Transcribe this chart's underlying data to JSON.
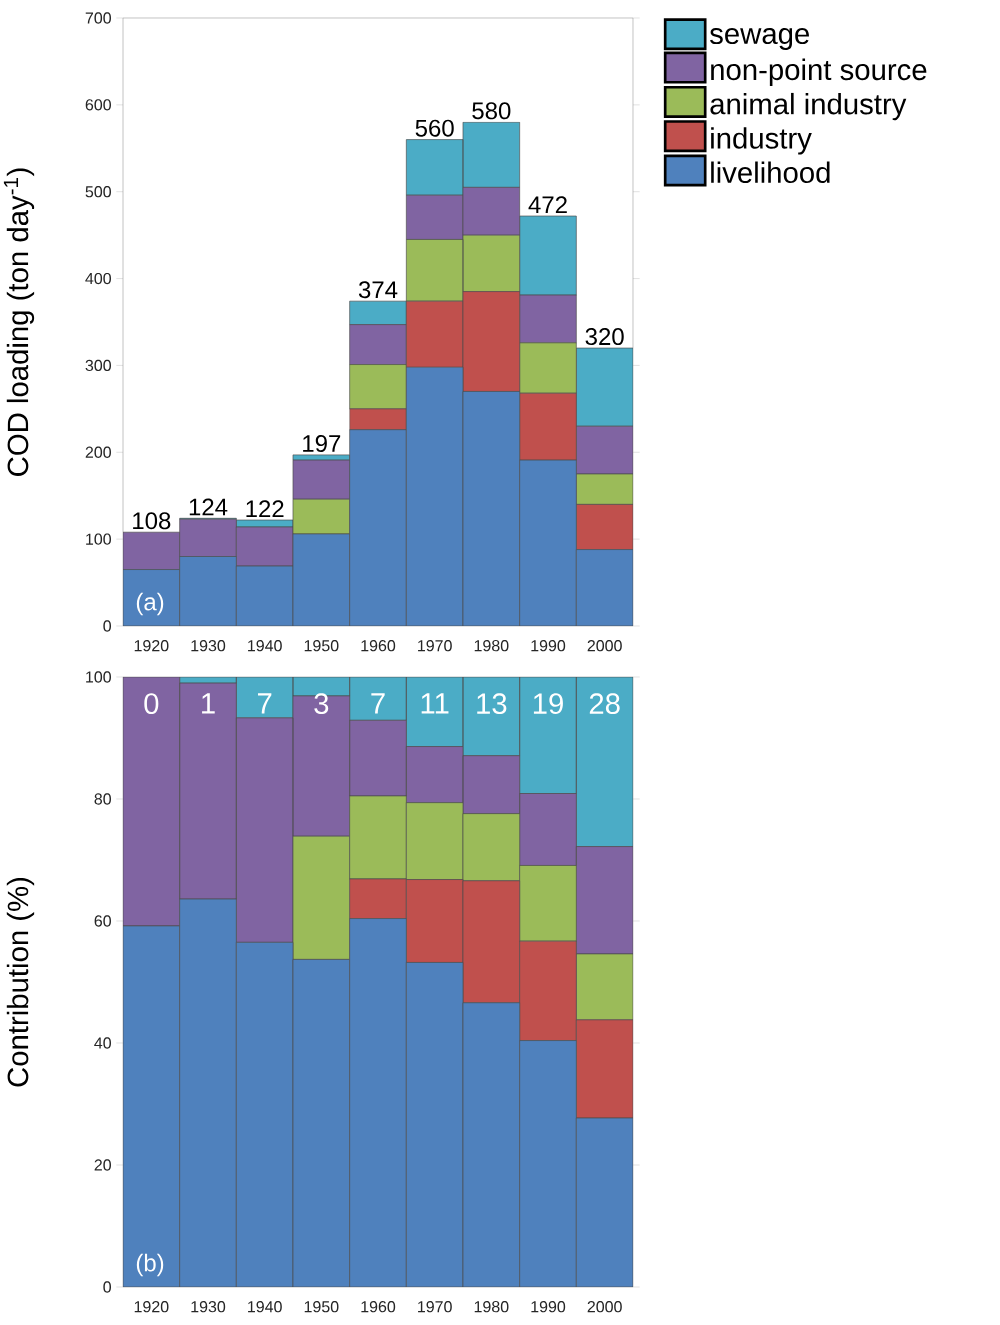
{
  "chart_data": [
    {
      "type": "bar",
      "stacked": true,
      "ylabel": "COD loading (ton day$^{-1}$)",
      "categories": [
        "1920",
        "1930",
        "1940",
        "1950",
        "1960",
        "1970",
        "1980",
        "1990",
        "2000"
      ],
      "series": [
        {
          "name": "livelihood",
          "color": "#4f81bd",
          "values": [
            65,
            80,
            69,
            106,
            226,
            298,
            270,
            191,
            88
          ]
        },
        {
          "name": "industry",
          "color": "#c0504d",
          "values": [
            0,
            0,
            0,
            0,
            24,
            76,
            115,
            77,
            52
          ]
        },
        {
          "name": "animal industry",
          "color": "#9bbb59",
          "values": [
            0,
            0,
            0,
            40,
            51,
            71,
            65,
            58,
            35
          ]
        },
        {
          "name": "non-point source",
          "color": "#8064a2",
          "values": [
            43,
            43,
            45,
            45,
            46,
            51,
            55,
            55,
            55
          ]
        },
        {
          "name": "sewage",
          "color": "#4bacc6",
          "values": [
            0,
            1,
            8,
            6,
            27,
            64,
            75,
            91,
            90
          ]
        }
      ],
      "totals": [
        "108",
        "124",
        "122",
        "197",
        "374",
        "560",
        "580",
        "472",
        "320"
      ],
      "ylim": [
        0,
        700
      ],
      "yticks": [
        0,
        100,
        200,
        300,
        400,
        500,
        600,
        700
      ],
      "annotations": [
        "(a)"
      ],
      "legend": "top right"
    },
    {
      "type": "bar",
      "stacked": true,
      "ylabel": "Contribution (%)",
      "categories": [
        "1920",
        "1930",
        "1940",
        "1950",
        "1960",
        "1970",
        "1980",
        "1990",
        "2000"
      ],
      "series": [
        {
          "color": "#4f81bd",
          "values": [
            59.2,
            63.6,
            56.5,
            53.7,
            60.4,
            53.2,
            46.6,
            40.4,
            27.7
          ]
        },
        {
          "color": "#c0504d",
          "values": [
            0,
            0,
            0,
            0,
            6.5,
            13.6,
            20.0,
            16.3,
            16.1
          ]
        },
        {
          "color": "#9bbb59",
          "values": [
            0,
            0,
            0,
            20.2,
            13.6,
            12.6,
            11.0,
            12.4,
            10.8
          ]
        },
        {
          "color": "#8064a2",
          "values": [
            40.8,
            35.4,
            36.8,
            23.0,
            12.4,
            9.2,
            9.5,
            11.8,
            17.6
          ]
        },
        {
          "color": "#4bacc6",
          "values": [
            0,
            1.0,
            6.7,
            3.1,
            7.1,
            11.4,
            12.9,
            19.1,
            27.8
          ],
          "value_labels": [
            "0",
            "1",
            "7",
            "3",
            "7",
            "11",
            "13",
            "19",
            "28"
          ]
        }
      ],
      "ylim": [
        0,
        100
      ],
      "yticks": [
        0,
        20,
        40,
        60,
        80,
        100
      ],
      "annotations": [
        "(b)"
      ]
    }
  ]
}
